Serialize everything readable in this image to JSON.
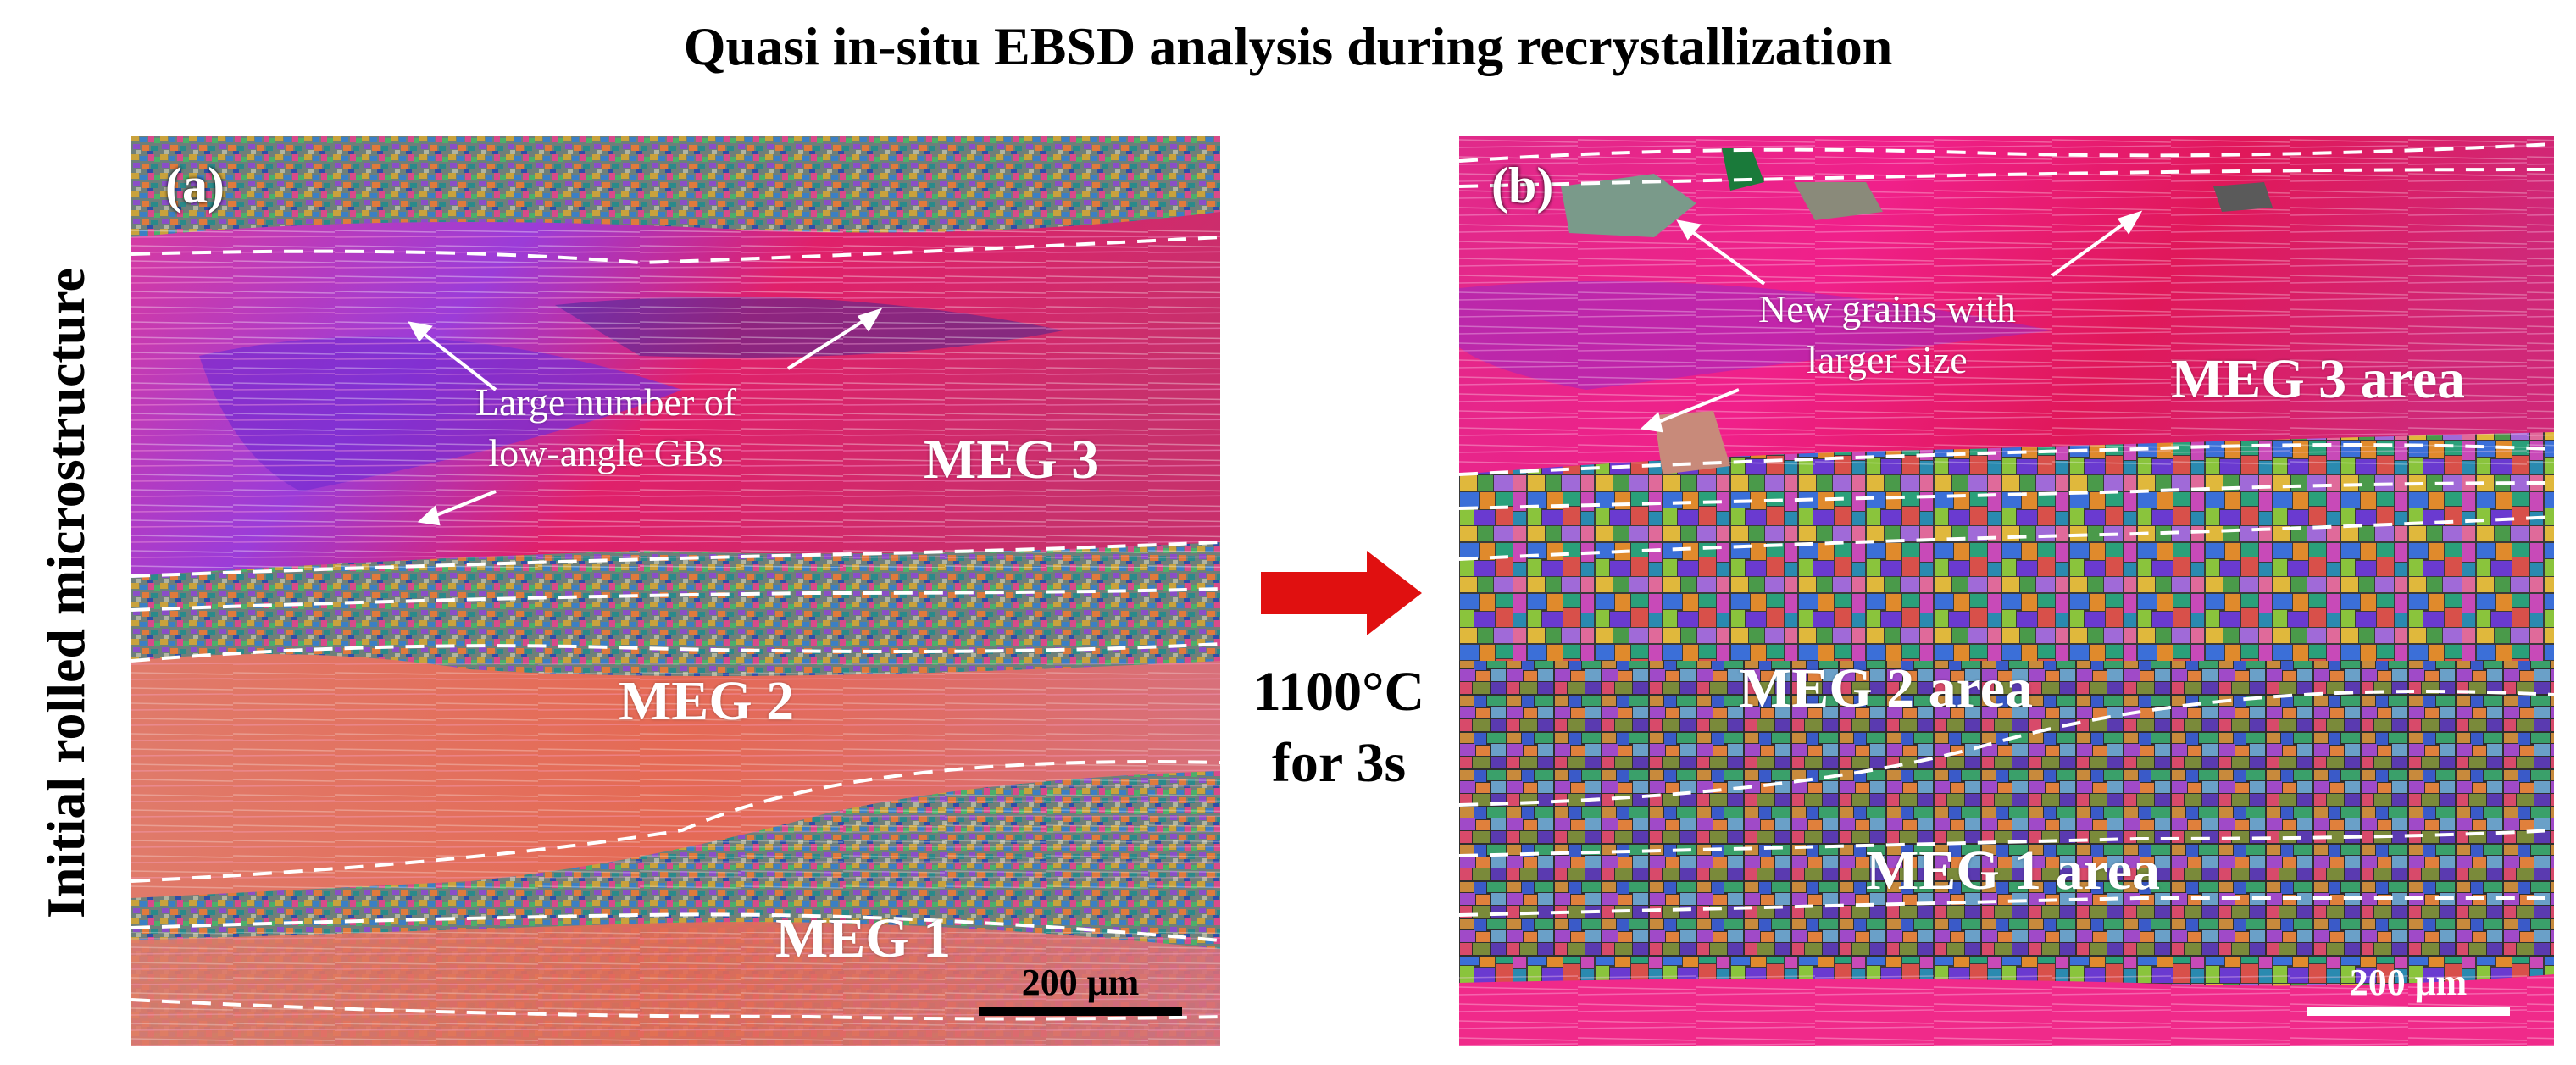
{
  "title": "Quasi in-situ EBSD analysis during recrystallization",
  "side_label": "Initial rolled microstructure",
  "arrow_color": "#e01010",
  "condition": {
    "line1": "1100°C",
    "line2": "for 3s"
  },
  "panel_a": {
    "label": "(a)",
    "regions": [
      "MEG 3",
      "MEG 2",
      "MEG 1"
    ],
    "annotation": {
      "line1": "Large number of",
      "line2": "low-angle GBs"
    },
    "scale_bar": "200 μm",
    "scale_bar_color": "#000000"
  },
  "panel_b": {
    "label": "(b)",
    "regions": [
      "MEG 3 area",
      "MEG 2 area",
      "MEG 1 area"
    ],
    "annotation": {
      "line1": "New grains with",
      "line2": "larger size"
    },
    "scale_bar": "200 μm",
    "scale_bar_color": "#ffffff"
  }
}
